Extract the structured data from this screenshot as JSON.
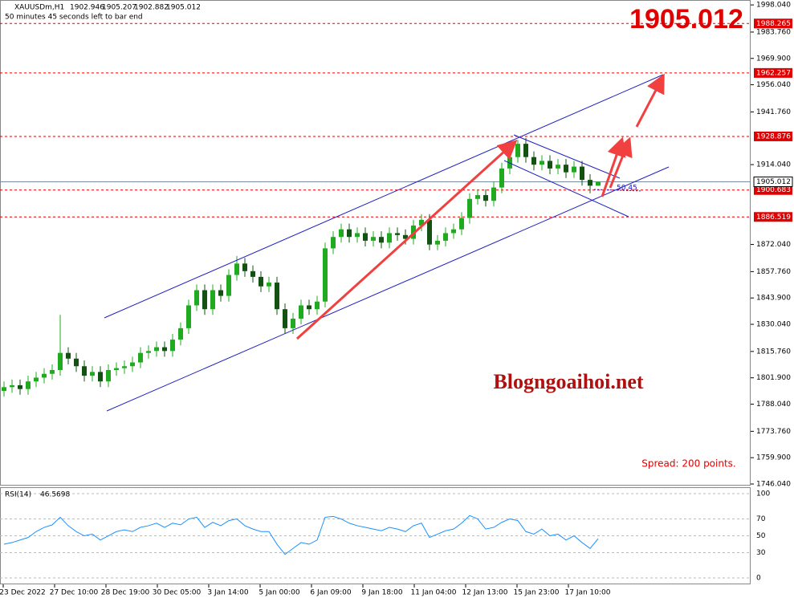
{
  "header": {
    "symbol": "XAUUSDm,H1",
    "timer": "50 minutes 45 seconds left to bar end"
  },
  "chart_data": [
    {
      "type": "candlestick",
      "up_color": "#1faa1f",
      "down_color": "#145214",
      "open": [
        1795,
        1797,
        1798,
        1796,
        1800,
        1802,
        1804,
        1806,
        1815,
        1812,
        1808,
        1803,
        1805,
        1800,
        1806,
        1807,
        1808,
        1810,
        1815,
        1816,
        1818,
        1816,
        1822,
        1828,
        1840,
        1848,
        1838,
        1848,
        1845,
        1856,
        1862,
        1858,
        1855,
        1850,
        1852,
        1838,
        1828,
        1833,
        1840,
        1838,
        1842,
        1870,
        1876,
        1880,
        1876,
        1878,
        1874,
        1876,
        1873,
        1878,
        1877,
        1875,
        1882,
        1885,
        1872,
        1874,
        1878,
        1880,
        1886,
        1896,
        1898,
        1895,
        1902,
        1912,
        1918,
        1925,
        1918,
        1914,
        1916,
        1912,
        1914,
        1910,
        1913,
        1906,
        1902.946
      ],
      "high": [
        1800,
        1801,
        1801,
        1803,
        1805,
        1807,
        1809,
        1835,
        1818,
        1815,
        1811,
        1808,
        1808,
        1809,
        1810,
        1811,
        1813,
        1818,
        1819,
        1821,
        1821,
        1825,
        1831,
        1843,
        1851,
        1851,
        1851,
        1851,
        1859,
        1866,
        1865,
        1861,
        1858,
        1855,
        1855,
        1841,
        1836,
        1843,
        1843,
        1845,
        1873,
        1879,
        1883,
        1883,
        1881,
        1881,
        1879,
        1879,
        1881,
        1881,
        1880,
        1885,
        1888,
        1888,
        1877,
        1881,
        1883,
        1889,
        1899,
        1901,
        1901,
        1905,
        1915,
        1921,
        1927,
        1928,
        1921,
        1919,
        1919,
        1917,
        1917,
        1916,
        1916,
        1909,
        1905.207
      ],
      "low": [
        1792,
        1794,
        1793,
        1793,
        1797,
        1799,
        1801,
        1803,
        1809,
        1805,
        1800,
        1800,
        1797,
        1797,
        1803,
        1804,
        1805,
        1807,
        1812,
        1813,
        1813,
        1813,
        1819,
        1825,
        1837,
        1835,
        1835,
        1842,
        1842,
        1853,
        1855,
        1852,
        1847,
        1847,
        1835,
        1825,
        1825,
        1830,
        1835,
        1835,
        1839,
        1867,
        1873,
        1873,
        1873,
        1871,
        1871,
        1870,
        1870,
        1874,
        1872,
        1872,
        1879,
        1869,
        1869,
        1871,
        1875,
        1877,
        1883,
        1893,
        1892,
        1892,
        1899,
        1909,
        1915,
        1915,
        1911,
        1911,
        1909,
        1909,
        1907,
        1907,
        1903,
        1899,
        1902.882
      ],
      "close": [
        1797,
        1798,
        1796,
        1800,
        1802,
        1804,
        1806,
        1815,
        1812,
        1808,
        1803,
        1805,
        1800,
        1806,
        1807,
        1808,
        1810,
        1815,
        1816,
        1818,
        1816,
        1822,
        1828,
        1840,
        1848,
        1838,
        1848,
        1845,
        1856,
        1862,
        1858,
        1855,
        1850,
        1852,
        1838,
        1828,
        1833,
        1840,
        1838,
        1842,
        1870,
        1876,
        1880,
        1876,
        1878,
        1874,
        1876,
        1873,
        1878,
        1877,
        1875,
        1882,
        1885,
        1872,
        1874,
        1878,
        1880,
        1886,
        1896,
        1898,
        1895,
        1902,
        1912,
        1918,
        1925,
        1918,
        1914,
        1916,
        1912,
        1914,
        1910,
        1913,
        1906,
        1902.946,
        1905.012
      ],
      "ylim": [
        1745.2,
        2000.2
      ],
      "yticks": [
        {
          "value": 1998.04,
          "label": "1998.040"
        },
        {
          "value": 1983.76,
          "label": "1983.760"
        },
        {
          "value": 1969.9,
          "label": "1969.900"
        },
        {
          "value": 1956.04,
          "label": "1956.040"
        },
        {
          "value": 1941.76,
          "label": "1941.760"
        },
        {
          "value": 1914.04,
          "label": "1914.040"
        },
        {
          "value": 1872.04,
          "label": "1872.040"
        },
        {
          "value": 1857.76,
          "label": "1857.760"
        },
        {
          "value": 1843.9,
          "label": "1843.900"
        },
        {
          "value": 1830.04,
          "label": "1830.040"
        },
        {
          "value": 1815.76,
          "label": "1815.760"
        },
        {
          "value": 1801.9,
          "label": "1801.900"
        },
        {
          "value": 1788.04,
          "label": "1788.040"
        },
        {
          "value": 1773.76,
          "label": "1773.760"
        },
        {
          "value": 1759.9,
          "label": "1759.900"
        },
        {
          "value": 1746.04,
          "label": "1746.040"
        }
      ],
      "levels": [
        1988.265,
        1962.257,
        1928.876,
        1900.683,
        1886.519
      ],
      "level_color": "#e00000",
      "price_line_color": "#7a8aa0",
      "x_labels": [
        "23 Dec 2022",
        "27 Dec 10:00",
        "28 Dec 19:00",
        "30 Dec 05:00",
        "3 Jan 14:00",
        "5 Jan 00:00",
        "6 Jan 09:00",
        "9 Jan 18:00",
        "11 Jan 04:00",
        "12 Jan 13:00",
        "15 Jan 23:00",
        "17 Jan 10:00"
      ],
      "watermark": "Blogngoaihoi.net",
      "spread": "Spread: 200 points.",
      "channel_label": "50.45"
    },
    {
      "type": "line",
      "name": "RSI(14)",
      "color": "#1e90ff",
      "values": [
        40,
        42,
        45,
        48,
        55,
        60,
        63,
        72,
        62,
        55,
        50,
        52,
        45,
        50,
        55,
        57,
        55,
        60,
        62,
        65,
        60,
        65,
        63,
        70,
        72,
        60,
        66,
        62,
        68,
        70,
        62,
        58,
        55,
        55,
        40,
        28,
        35,
        42,
        40,
        45,
        72,
        73,
        70,
        65,
        62,
        60,
        58,
        56,
        60,
        58,
        55,
        62,
        65,
        48,
        52,
        56,
        58,
        65,
        74,
        70,
        58,
        60,
        66,
        70,
        68,
        55,
        52,
        58,
        50,
        52,
        45,
        50,
        42,
        35,
        46.5698
      ],
      "ylim": [
        -7.6,
        106.7
      ],
      "yticks": [
        0,
        30,
        50,
        70,
        100
      ]
    }
  ]
}
